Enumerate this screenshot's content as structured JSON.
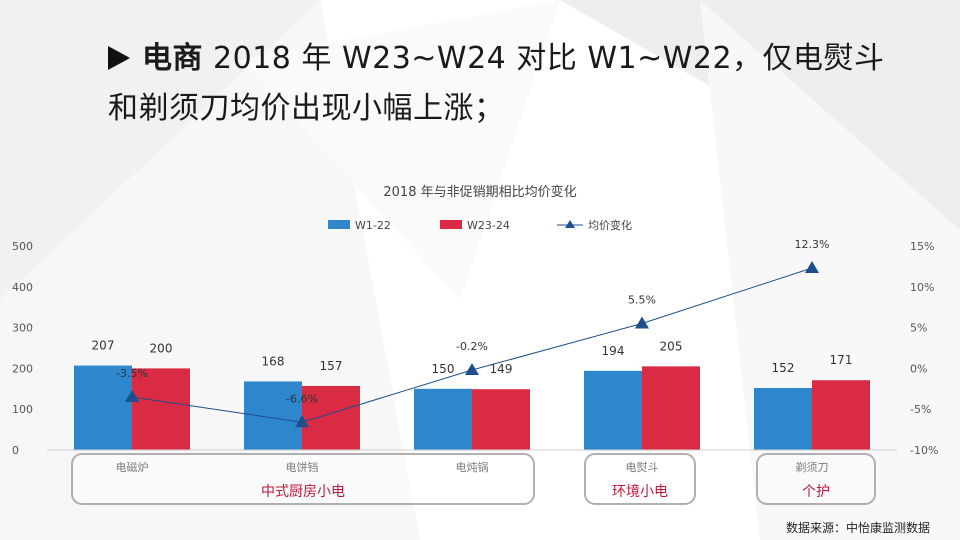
{
  "slide": {
    "bold_prefix": "电商",
    "headline_rest": " 2018 年 W23~W24 对比 W1~W22，仅电熨斗和剃须刀均价出现小幅上涨；",
    "source_note": "数据来源：中怡康监测数据"
  },
  "colors": {
    "w1_22": "#2e86cc",
    "w23_24": "#d92b44",
    "line": "#1f4e8c",
    "axis_text": "#555555",
    "group_label": "#c0183a",
    "group_border": "#b0b0b0"
  },
  "chart_data": {
    "type": "bar",
    "title": "2018 年与非促销期相比均价变化",
    "categories": [
      "电磁炉",
      "电饼铛",
      "电炖锅",
      "电熨斗",
      "剃须刀"
    ],
    "series": [
      {
        "name": "W1-22",
        "values": [
          207,
          168,
          150,
          194,
          152
        ]
      },
      {
        "name": "W23-24",
        "values": [
          200,
          157,
          149,
          205,
          171
        ]
      }
    ],
    "line_series": {
      "name": "均价变化",
      "values": [
        -3.5,
        -6.6,
        -0.2,
        5.5,
        12.3
      ],
      "labels": [
        "-3.5%",
        "-6.6%",
        "-0.2%",
        "5.5%",
        "12.3%"
      ],
      "axis": "right"
    },
    "left_axis": {
      "ylim": [
        0,
        500
      ],
      "ticks": [
        "0",
        "100",
        "200",
        "300",
        "400",
        "500"
      ]
    },
    "right_axis": {
      "ylim": [
        -10,
        15
      ],
      "ticks": [
        "-10%",
        "-5%",
        "0%",
        "5%",
        "10%",
        "15%"
      ]
    },
    "legend_position": "top",
    "groups": [
      {
        "label": "中式厨房小电",
        "categories": [
          "电磁炉",
          "电饼铛",
          "电炖锅"
        ]
      },
      {
        "label": "环境小电",
        "categories": [
          "电熨斗"
        ]
      },
      {
        "label": "个护",
        "categories": [
          "剃须刀"
        ]
      }
    ],
    "grid": false
  }
}
